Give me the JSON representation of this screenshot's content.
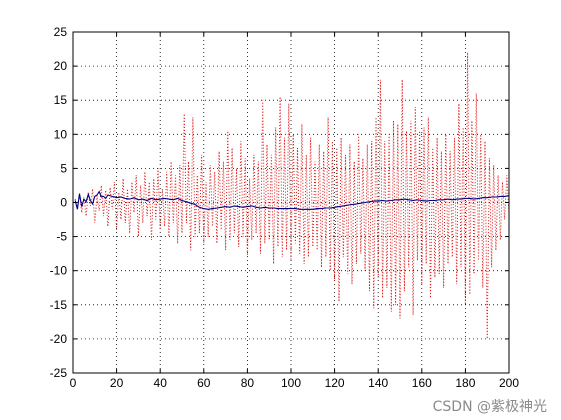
{
  "watermark": "CSDN @紫极神光",
  "colors": {
    "series1": "#e01010",
    "series2": "#000080",
    "axes": "#000000",
    "grid": "#000000"
  },
  "chart_data": {
    "type": "line",
    "title": "",
    "xlabel": "",
    "ylabel": "",
    "xlim": [
      0,
      200
    ],
    "ylim": [
      -25,
      25
    ],
    "xticks": [
      0,
      20,
      40,
      60,
      80,
      100,
      120,
      140,
      160,
      180,
      200
    ],
    "yticks": [
      -25,
      -20,
      -15,
      -10,
      -5,
      0,
      5,
      10,
      15,
      20,
      25
    ],
    "grid": true,
    "series": [
      {
        "color": "#e01010",
        "style": "dotted",
        "x": [
          1,
          2,
          3,
          4,
          5,
          6,
          7,
          8,
          9,
          10,
          11,
          12,
          13,
          14,
          15,
          16,
          17,
          18,
          19,
          20,
          21,
          22,
          23,
          24,
          25,
          26,
          27,
          28,
          29,
          30,
          31,
          32,
          33,
          34,
          35,
          36,
          37,
          38,
          39,
          40,
          41,
          42,
          43,
          44,
          45,
          46,
          47,
          48,
          49,
          50,
          51,
          52,
          53,
          54,
          55,
          56,
          57,
          58,
          59,
          60,
          61,
          62,
          63,
          64,
          65,
          66,
          67,
          68,
          69,
          70,
          71,
          72,
          73,
          74,
          75,
          76,
          77,
          78,
          79,
          80,
          81,
          82,
          83,
          84,
          85,
          86,
          87,
          88,
          89,
          90,
          91,
          92,
          93,
          94,
          95,
          96,
          97,
          98,
          99,
          100,
          101,
          102,
          103,
          104,
          105,
          106,
          107,
          108,
          109,
          110,
          111,
          112,
          113,
          114,
          115,
          116,
          117,
          118,
          119,
          120,
          121,
          122,
          123,
          124,
          125,
          126,
          127,
          128,
          129,
          130,
          131,
          132,
          133,
          134,
          135,
          136,
          137,
          138,
          139,
          140,
          141,
          142,
          143,
          144,
          145,
          146,
          147,
          148,
          149,
          150,
          151,
          152,
          153,
          154,
          155,
          156,
          157,
          158,
          159,
          160,
          161,
          162,
          163,
          164,
          165,
          166,
          167,
          168,
          169,
          170,
          171,
          172,
          173,
          174,
          175,
          176,
          177,
          178,
          179,
          180,
          181,
          182,
          183,
          184,
          185,
          186,
          187,
          188,
          189,
          190,
          191,
          192,
          193,
          194,
          195,
          196,
          197,
          198,
          199,
          200
        ],
        "y": [
          0.5,
          -0.8,
          1.2,
          -1.5,
          0.8,
          -2.0,
          1.5,
          -0.5,
          2.0,
          -3.0,
          1.0,
          -1.2,
          2.5,
          -2.0,
          1.8,
          -3.5,
          2.2,
          -1.0,
          3.0,
          -4.0,
          1.5,
          -2.5,
          3.5,
          -3.0,
          2.0,
          -4.5,
          3.0,
          -1.5,
          4.0,
          -5.0,
          2.5,
          -3.0,
          4.5,
          -2.0,
          3.0,
          -5.5,
          3.5,
          -2.5,
          5.0,
          -4.0,
          2.0,
          -3.5,
          4.5,
          -5.0,
          6.0,
          -3.0,
          4.0,
          -6.0,
          5.5,
          -4.5,
          13.0,
          -3.0,
          6.0,
          -7.0,
          12.5,
          -5.0,
          4.0,
          -4.5,
          7.0,
          -6.0,
          3.0,
          -5.0,
          5.5,
          -3.5,
          4.5,
          -6.0,
          7.5,
          -4.0,
          6.0,
          -7.0,
          10.5,
          -5.5,
          8.0,
          -4.5,
          5.0,
          -6.5,
          9.0,
          -5.0,
          6.5,
          -8.0,
          3.5,
          -5.5,
          7.0,
          -4.5,
          6.0,
          -7.5,
          15.0,
          -6.0,
          8.5,
          -5.5,
          7.0,
          -9.0,
          11.0,
          -6.5,
          15.5,
          -8.0,
          9.5,
          -7.0,
          14.5,
          -8.5,
          10.0,
          -6.0,
          8.0,
          -7.5,
          11.5,
          -9.0,
          7.0,
          -8.0,
          9.5,
          -6.5,
          6.0,
          -7.0,
          8.5,
          -9.5,
          7.5,
          -8.0,
          12.5,
          -10.0,
          9.0,
          -11.5,
          8.0,
          -14.5,
          9.5,
          -8.0,
          7.0,
          -10.5,
          8.5,
          -12.0,
          6.0,
          -9.0,
          10.0,
          -7.5,
          6.5,
          -10.0,
          8.5,
          -13.0,
          9.0,
          -15.5,
          12.5,
          -11.0,
          18.0,
          -14.0,
          9.0,
          -12.5,
          10.0,
          -16.0,
          12.0,
          -15.0,
          11.5,
          -17.0,
          18.0,
          -13.0,
          10.5,
          -9.5,
          12.0,
          -16.5,
          14.0,
          -8.5,
          10.5,
          -12.0,
          11.0,
          -9.0,
          12.5,
          -14.0,
          8.0,
          -11.0,
          9.5,
          -10.5,
          7.5,
          -12.5,
          10.0,
          -9.0,
          7.5,
          -8.0,
          9.5,
          -12.0,
          14.5,
          -9.5,
          11.0,
          -15.0,
          22.0,
          -13.5,
          12.0,
          -10.5,
          16.0,
          -8.5,
          10.0,
          -12.5,
          9.0,
          -20.0,
          6.5,
          -9.5,
          5.5,
          -7.0,
          4.0,
          -5.5,
          3.0,
          -2.5,
          4.0,
          -1.5
        ]
      },
      {
        "color": "#000080",
        "style": "solid",
        "x": [
          1,
          2,
          3,
          4,
          5,
          6,
          7,
          8,
          9,
          10,
          11,
          12,
          13,
          14,
          15,
          16,
          18,
          20,
          22,
          24,
          26,
          28,
          30,
          32,
          34,
          36,
          38,
          40,
          42,
          44,
          46,
          48,
          50,
          52,
          54,
          56,
          58,
          60,
          62,
          64,
          66,
          68,
          70,
          72,
          74,
          76,
          78,
          80,
          82,
          84,
          86,
          88,
          90,
          92,
          94,
          96,
          98,
          100,
          102,
          104,
          106,
          108,
          110,
          112,
          114,
          116,
          118,
          120,
          122,
          124,
          126,
          128,
          130,
          132,
          134,
          136,
          138,
          140,
          142,
          144,
          146,
          148,
          150,
          152,
          154,
          156,
          158,
          160,
          162,
          164,
          166,
          168,
          170,
          172,
          174,
          176,
          178,
          180,
          182,
          184,
          186,
          188,
          190,
          192,
          194,
          196,
          198,
          200
        ],
        "y": [
          0.3,
          -1.0,
          1.3,
          -0.6,
          0.5,
          0.1,
          1.2,
          0.3,
          -0.2,
          0.9,
          1.1,
          1.6,
          0.8,
          0.9,
          0.6,
          1.1,
          0.9,
          0.7,
          0.8,
          0.6,
          0.5,
          0.7,
          0.4,
          0.5,
          0.3,
          0.6,
          0.4,
          0.5,
          0.6,
          0.5,
          0.4,
          0.6,
          0.3,
          0.1,
          -0.1,
          -0.3,
          -0.7,
          -0.9,
          -1.0,
          -0.9,
          -0.8,
          -0.7,
          -0.6,
          -0.7,
          -0.5,
          -0.6,
          -0.7,
          -0.6,
          -0.5,
          -0.7,
          -0.8,
          -0.7,
          -0.8,
          -0.8,
          -0.9,
          -0.9,
          -0.9,
          -0.9,
          -0.9,
          -1.0,
          -1.0,
          -1.0,
          -1.0,
          -0.9,
          -0.9,
          -0.8,
          -0.8,
          -0.7,
          -0.6,
          -0.5,
          -0.4,
          -0.3,
          -0.2,
          -0.1,
          0.0,
          0.1,
          0.2,
          0.2,
          0.3,
          0.2,
          0.3,
          0.4,
          0.4,
          0.5,
          0.4,
          0.3,
          0.4,
          0.3,
          0.2,
          0.3,
          0.3,
          0.4,
          0.4,
          0.5,
          0.4,
          0.5,
          0.5,
          0.6,
          0.6,
          0.5,
          0.6,
          0.7,
          0.7,
          0.8,
          0.8,
          0.9,
          0.9,
          1.0
        ]
      }
    ]
  }
}
